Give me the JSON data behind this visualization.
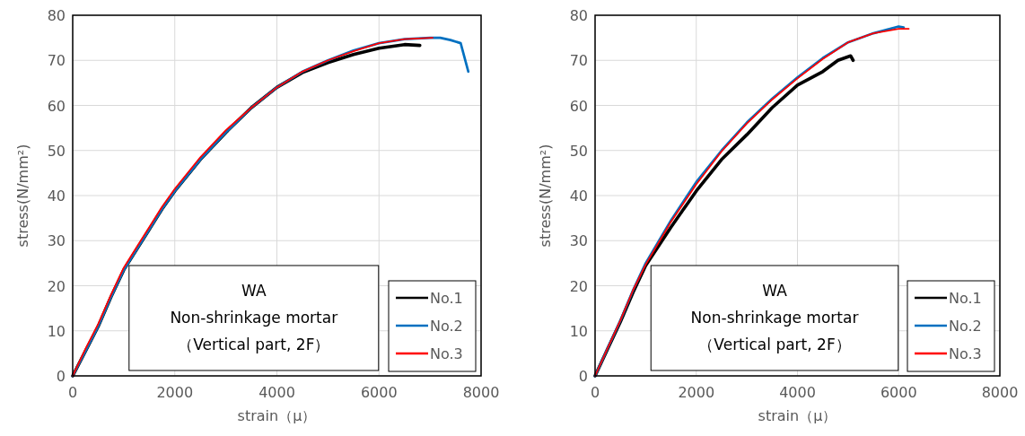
{
  "chart_data": [
    {
      "type": "line",
      "xlabel": "strain（μ）",
      "ylabel": "stress(N/mm²)",
      "xlim": [
        0,
        8000
      ],
      "ylim": [
        0,
        80
      ],
      "xticks": [
        0,
        2000,
        4000,
        6000,
        8000
      ],
      "yticks": [
        0,
        10,
        20,
        30,
        40,
        50,
        60,
        70,
        80
      ],
      "grid": true,
      "legend": "bottom right",
      "marker": "none",
      "line_style": "solid",
      "annotations": [
        "WA",
        "Non-shrinkage mortar",
        "（Vertical part, 2F）"
      ],
      "series": [
        {
          "name": "No.1",
          "color": "#000000",
          "x": [
            0,
            250,
            500,
            750,
            1000,
            1250,
            1500,
            1750,
            2000,
            2500,
            3000,
            3500,
            4000,
            4500,
            5000,
            5500,
            6000,
            6500,
            6800
          ],
          "values": [
            0,
            5.5,
            11,
            17.5,
            23.5,
            28,
            32.5,
            37,
            41,
            48,
            54,
            59.5,
            64,
            67.3,
            69.5,
            71.3,
            72.7,
            73.5,
            73.3
          ]
        },
        {
          "name": "No.2",
          "color": "#0070c0",
          "x": [
            0,
            250,
            500,
            750,
            1000,
            1250,
            1500,
            1750,
            2000,
            2500,
            3000,
            3500,
            4000,
            4500,
            5000,
            5500,
            6000,
            6500,
            7000,
            7200,
            7400,
            7600,
            7750
          ],
          "values": [
            0,
            5.5,
            11,
            17.5,
            23.5,
            28,
            32.5,
            37,
            41,
            48,
            54,
            59.5,
            64,
            67.5,
            70,
            72.2,
            73.8,
            74.7,
            75,
            75,
            74.5,
            73.8,
            67.5
          ]
        },
        {
          "name": "No.3",
          "color": "#ff0000",
          "x": [
            0,
            250,
            500,
            750,
            1000,
            1250,
            1500,
            1750,
            2000,
            2500,
            3000,
            3500,
            4000,
            4500,
            5000,
            5500,
            6000,
            6500,
            7050
          ],
          "values": [
            0,
            6,
            11.5,
            18,
            24,
            28.5,
            33,
            37.5,
            41.5,
            48.5,
            54.5,
            59.5,
            64,
            67.5,
            70,
            72,
            73.8,
            74.7,
            75
          ]
        }
      ]
    },
    {
      "type": "line",
      "xlabel": "strain（μ）",
      "ylabel": "stress(N/mm²)",
      "xlim": [
        0,
        8000
      ],
      "ylim": [
        0,
        80
      ],
      "xticks": [
        0,
        2000,
        4000,
        6000,
        8000
      ],
      "yticks": [
        0,
        10,
        20,
        30,
        40,
        50,
        60,
        70,
        80
      ],
      "grid": true,
      "legend": "bottom right",
      "marker": "none",
      "line_style": "solid",
      "annotations": [
        "WA",
        "Non-shrinkage mortar",
        "（Vertical part, 2F）"
      ],
      "series": [
        {
          "name": "No.1",
          "color": "#000000",
          "x": [
            0,
            250,
            500,
            750,
            1000,
            1500,
            2000,
            2500,
            3000,
            3500,
            4000,
            4500,
            4800,
            5050,
            5100
          ],
          "values": [
            0,
            6,
            12,
            18.5,
            24.5,
            33,
            41,
            48,
            53.5,
            59.5,
            64.5,
            67.5,
            70,
            71,
            70
          ]
        },
        {
          "name": "No.2",
          "color": "#0070c0",
          "x": [
            0,
            250,
            500,
            750,
            1000,
            1500,
            2000,
            2500,
            3000,
            3500,
            4000,
            4500,
            5000,
            5500,
            6000,
            6100
          ],
          "values": [
            0,
            6.2,
            12.3,
            19,
            25,
            34.5,
            43,
            50,
            56.2,
            61.5,
            66.2,
            70.5,
            74,
            76,
            77.5,
            77.3
          ]
        },
        {
          "name": "No.3",
          "color": "#ff0000",
          "x": [
            0,
            250,
            500,
            750,
            1000,
            1500,
            2000,
            2500,
            3000,
            3500,
            4000,
            4500,
            5000,
            5500,
            6000,
            6200
          ],
          "values": [
            0,
            6.2,
            12.3,
            19,
            24.7,
            34.2,
            42.5,
            49.8,
            56,
            61.3,
            66,
            70.3,
            74,
            76,
            77,
            77
          ]
        }
      ]
    }
  ]
}
